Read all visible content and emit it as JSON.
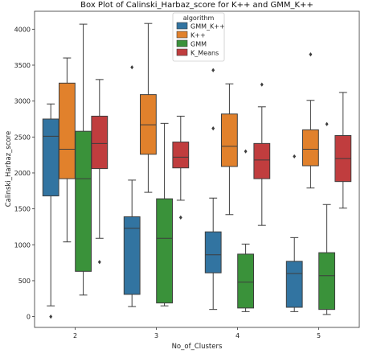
{
  "chart_data": {
    "type": "box",
    "title": "Box Plot of Calinski_Harbaz_score for K++ and GMM_K++",
    "xlabel": "No_of_Clusters",
    "ylabel": "Calinski_Harbaz_score",
    "categories": [
      "2",
      "3",
      "4",
      "5"
    ],
    "ylim": [
      -150,
      4250
    ],
    "yticks": [
      0,
      500,
      1000,
      1500,
      2000,
      2500,
      3000,
      3500,
      4000
    ],
    "legend": {
      "title": "algorithm",
      "position": "top-center"
    },
    "series": [
      {
        "name": "GMM_K++",
        "color": "#3274a1",
        "boxes": [
          {
            "category": "2",
            "whisker_low": 150,
            "q1": 1680,
            "median": 2510,
            "q3": 2750,
            "whisker_high": 2960,
            "outliers": [
              0
            ]
          },
          {
            "category": "3",
            "whisker_low": 140,
            "q1": 310,
            "median": 1230,
            "q3": 1390,
            "whisker_high": 1900,
            "outliers": [
              3470
            ]
          },
          {
            "category": "4",
            "whisker_low": 100,
            "q1": 610,
            "median": 860,
            "q3": 1180,
            "whisker_high": 1650,
            "outliers": [
              2620,
              3430
            ]
          },
          {
            "category": "5",
            "whisker_low": 70,
            "q1": 130,
            "median": 600,
            "q3": 770,
            "whisker_high": 1100,
            "outliers": [
              2230
            ]
          }
        ]
      },
      {
        "name": "K++",
        "color": "#e1812c",
        "boxes": [
          {
            "category": "2",
            "whisker_low": 1040,
            "q1": 1920,
            "median": 2330,
            "q3": 3250,
            "whisker_high": 3600,
            "outliers": []
          },
          {
            "category": "3",
            "whisker_low": 1730,
            "q1": 2260,
            "median": 2670,
            "q3": 3090,
            "whisker_high": 4080,
            "outliers": []
          },
          {
            "category": "4",
            "whisker_low": 1420,
            "q1": 2090,
            "median": 2370,
            "q3": 2820,
            "whisker_high": 3240,
            "outliers": []
          },
          {
            "category": "5",
            "whisker_low": 1790,
            "q1": 2100,
            "median": 2330,
            "q3": 2600,
            "whisker_high": 3010,
            "outliers": [
              3650
            ]
          }
        ]
      },
      {
        "name": "GMM",
        "color": "#3a923a",
        "boxes": [
          {
            "category": "2",
            "whisker_low": 300,
            "q1": 630,
            "median": 1920,
            "q3": 2580,
            "whisker_high": 4070,
            "outliers": []
          },
          {
            "category": "3",
            "whisker_low": 150,
            "q1": 190,
            "median": 1090,
            "q3": 1640,
            "whisker_high": 2690,
            "outliers": []
          },
          {
            "category": "4",
            "whisker_low": 70,
            "q1": 120,
            "median": 480,
            "q3": 870,
            "whisker_high": 1010,
            "outliers": [
              2300
            ]
          },
          {
            "category": "5",
            "whisker_low": 30,
            "q1": 100,
            "median": 570,
            "q3": 890,
            "whisker_high": 1560,
            "outliers": [
              2680
            ]
          }
        ]
      },
      {
        "name": "K_Means",
        "color": "#c03d3e",
        "boxes": [
          {
            "category": "2",
            "whisker_low": 1090,
            "q1": 2060,
            "median": 2410,
            "q3": 2790,
            "whisker_high": 3300,
            "outliers": [
              760
            ]
          },
          {
            "category": "3",
            "whisker_low": 1620,
            "q1": 2070,
            "median": 2220,
            "q3": 2430,
            "whisker_high": 2790,
            "outliers": [
              1380
            ]
          },
          {
            "category": "4",
            "whisker_low": 1270,
            "q1": 1920,
            "median": 2180,
            "q3": 2410,
            "whisker_high": 2920,
            "outliers": [
              3230
            ]
          },
          {
            "category": "5",
            "whisker_low": 1510,
            "q1": 1880,
            "median": 2200,
            "q3": 2520,
            "whisker_high": 3120,
            "outliers": []
          }
        ]
      }
    ]
  }
}
